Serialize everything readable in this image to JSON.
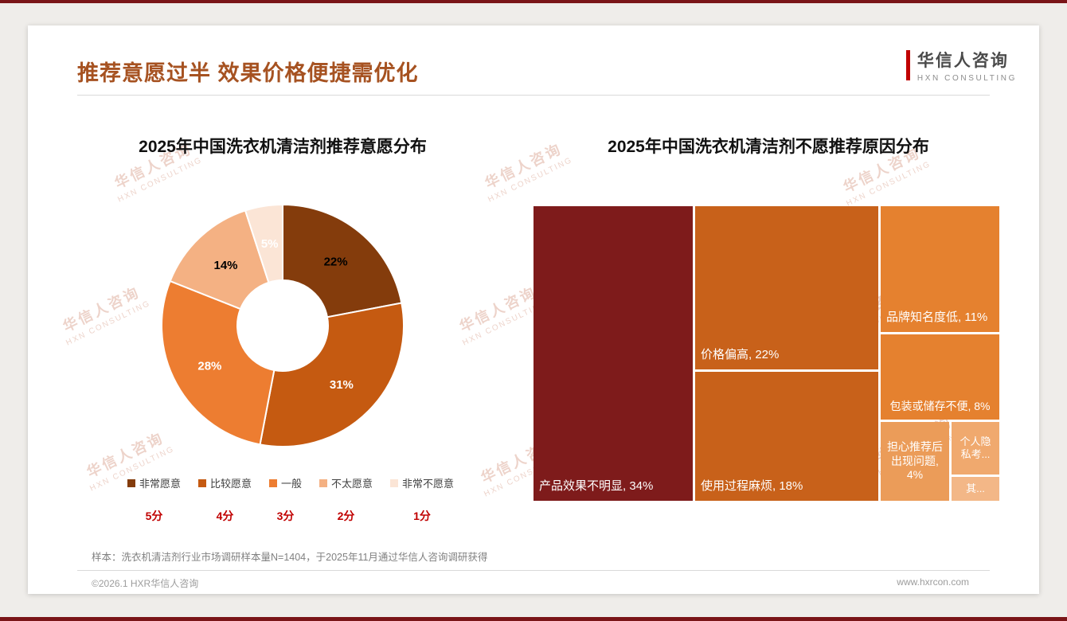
{
  "header": {
    "title": "推荐意愿过半 效果价格便捷需优化",
    "title_color": "#A65221",
    "logo": {
      "cn": "华信人咨询",
      "en": "HXN CONSULTING",
      "accent": "#C00000"
    }
  },
  "watermark": {
    "cn": "华信人咨询",
    "en": "HXN CONSULTING"
  },
  "chart_data": [
    {
      "type": "pie",
      "subtype": "donut",
      "title": "2025年中国洗衣机清洁剂推荐意愿分布",
      "legend_position": "bottom",
      "slices": [
        {
          "label": "非常愿意",
          "score": "5分",
          "value": 22,
          "color": "#843C0C",
          "label_color": "#000000"
        },
        {
          "label": "比较愿意",
          "score": "4分",
          "value": 31,
          "color": "#C55A11",
          "label_color": "#ffffff"
        },
        {
          "label": "一般",
          "score": "3分",
          "value": 28,
          "color": "#ED7D31",
          "label_color": "#ffffff"
        },
        {
          "label": "不太愿意",
          "score": "2分",
          "value": 14,
          "color": "#F4B183",
          "label_color": "#000000"
        },
        {
          "label": "非常不愿意",
          "score": "1分",
          "value": 5,
          "color": "#FBE5D6",
          "label_color": "#ffffff"
        }
      ]
    },
    {
      "type": "treemap",
      "title": "2025年中国洗衣机清洁剂不愿推荐原因分布",
      "items": [
        {
          "name": "产品效果不明显",
          "value": 34,
          "label": "产品效果不明显, 34%",
          "color": "#7E1B1B"
        },
        {
          "name": "价格偏高",
          "value": 22,
          "label": "价格偏高, 22%",
          "color": "#C8611A"
        },
        {
          "name": "使用过程麻烦",
          "value": 18,
          "label": "使用过程麻烦, 18%",
          "color": "#C8611A"
        },
        {
          "name": "品牌知名度低",
          "value": 11,
          "label": "品牌知名度低, 11%",
          "color": "#E5812F"
        },
        {
          "name": "包装或储存不便",
          "value": 8,
          "label": "包装或储存不便, 8%",
          "color": "#E5812F"
        },
        {
          "name": "担心推荐后出现问题",
          "value": 4,
          "label": "担心推荐后出现问题, 4%",
          "color": "#EB9C59"
        },
        {
          "name": "个人隐私考虑",
          "label": "个人隐私考...",
          "color": "#F0A96E"
        },
        {
          "name": "其他",
          "label": "其...",
          "color": "#F3B787"
        }
      ]
    }
  ],
  "footnote": "样本：洗衣机清洁剂行业市场调研样本量N=1404，于2025年11月通过华信人咨询调研获得",
  "footer": {
    "left": "©2026.1 HXR华信人咨询",
    "right": "www.hxrcon.com"
  }
}
